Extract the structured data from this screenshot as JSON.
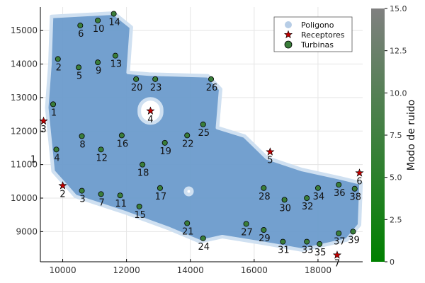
{
  "chart_data": {
    "type": "scatter",
    "xlim": [
      9300,
      19400
    ],
    "ylim": [
      8100,
      15700
    ],
    "x_ticks": [
      10000,
      12000,
      14000,
      16000,
      18000
    ],
    "y_ticks": [
      9000,
      10000,
      11000,
      12000,
      13000,
      14000,
      15000
    ],
    "grid": true,
    "legend_position": "top-right",
    "legend": [
      {
        "name": "Poligono",
        "marker": "circle",
        "color": "#b7cde6"
      },
      {
        "name": "Receptores",
        "marker": "star",
        "color": "#c00000"
      },
      {
        "name": "Turbinas",
        "marker": "circle",
        "color": "#3a7d3a"
      }
    ],
    "colorbar": {
      "label": "Modo de ruido",
      "range": [
        0,
        15
      ],
      "ticks": [
        "0",
        "2.5",
        "5.0",
        "7.5",
        "10.0",
        "12.5",
        "15.0"
      ],
      "color_low": "#008000",
      "color_high": "#808080"
    },
    "polygon_color": "#6b9bcc",
    "polygon": [
      [
        9650,
        15420
      ],
      [
        11600,
        15520
      ],
      [
        12150,
        15100
      ],
      [
        12050,
        13750
      ],
      [
        12700,
        13700
      ],
      [
        14550,
        13650
      ],
      [
        14950,
        13250
      ],
      [
        14850,
        12100
      ],
      [
        15700,
        11850
      ],
      [
        16400,
        11200
      ],
      [
        17500,
        10850
      ],
      [
        18700,
        10600
      ],
      [
        19350,
        10450
      ],
      [
        19300,
        9200
      ],
      [
        18900,
        8750
      ],
      [
        17500,
        8450
      ],
      [
        16300,
        8650
      ],
      [
        15000,
        8850
      ],
      [
        14300,
        8700
      ],
      [
        13300,
        9100
      ],
      [
        12000,
        9550
      ],
      [
        10400,
        10050
      ],
      [
        9700,
        10800
      ],
      [
        9500,
        12700
      ],
      [
        9600,
        14000
      ]
    ],
    "holes": [
      {
        "x": 12750,
        "y": 12600,
        "r": 350
      },
      {
        "x": 13950,
        "y": 10200,
        "r": 100
      }
    ],
    "receptors": [
      {
        "label": "1",
        "x": 9300,
        "y": 11400
      },
      {
        "label": "2",
        "x": 10000,
        "y": 10370
      },
      {
        "label": "3",
        "x": 9400,
        "y": 12300
      },
      {
        "label": "4",
        "x": 12750,
        "y": 12600
      },
      {
        "label": "5",
        "x": 16500,
        "y": 11380
      },
      {
        "label": "6",
        "x": 19300,
        "y": 10750
      },
      {
        "label": "7",
        "x": 18600,
        "y": 8300
      }
    ],
    "turbines": [
      {
        "label": "1",
        "x": 9700,
        "y": 12800
      },
      {
        "label": "2",
        "x": 9850,
        "y": 14150
      },
      {
        "label": "3",
        "x": 10600,
        "y": 10220
      },
      {
        "label": "4",
        "x": 9800,
        "y": 11450
      },
      {
        "label": "5",
        "x": 10500,
        "y": 13900
      },
      {
        "label": "6",
        "x": 10550,
        "y": 15150
      },
      {
        "label": "7",
        "x": 11200,
        "y": 10120
      },
      {
        "label": "8",
        "x": 10600,
        "y": 11850
      },
      {
        "label": "9",
        "x": 11100,
        "y": 14050
      },
      {
        "label": "10",
        "x": 11100,
        "y": 15300
      },
      {
        "label": "11",
        "x": 11800,
        "y": 10080
      },
      {
        "label": "12",
        "x": 11200,
        "y": 11450
      },
      {
        "label": "13",
        "x": 11650,
        "y": 14250
      },
      {
        "label": "14",
        "x": 11600,
        "y": 15500
      },
      {
        "label": "15",
        "x": 12400,
        "y": 9750
      },
      {
        "label": "16",
        "x": 11850,
        "y": 11870
      },
      {
        "label": "17",
        "x": 13050,
        "y": 10300
      },
      {
        "label": "18",
        "x": 12500,
        "y": 11000
      },
      {
        "label": "19",
        "x": 13200,
        "y": 11650
      },
      {
        "label": "20",
        "x": 12300,
        "y": 13550
      },
      {
        "label": "21",
        "x": 13900,
        "y": 9250
      },
      {
        "label": "22",
        "x": 13900,
        "y": 11870
      },
      {
        "label": "23",
        "x": 12900,
        "y": 13550
      },
      {
        "label": "24",
        "x": 14400,
        "y": 8800
      },
      {
        "label": "25",
        "x": 14400,
        "y": 12200
      },
      {
        "label": "26",
        "x": 14650,
        "y": 13550
      },
      {
        "label": "27",
        "x": 15750,
        "y": 9230
      },
      {
        "label": "28",
        "x": 16300,
        "y": 10300
      },
      {
        "label": "29",
        "x": 16300,
        "y": 9050
      },
      {
        "label": "30",
        "x": 16950,
        "y": 9950
      },
      {
        "label": "31",
        "x": 16900,
        "y": 8700
      },
      {
        "label": "32",
        "x": 17650,
        "y": 10000
      },
      {
        "label": "33",
        "x": 17650,
        "y": 8700
      },
      {
        "label": "34",
        "x": 18000,
        "y": 10300
      },
      {
        "label": "35",
        "x": 18050,
        "y": 8630
      },
      {
        "label": "36",
        "x": 18650,
        "y": 10400
      },
      {
        "label": "37",
        "x": 18650,
        "y": 8950
      },
      {
        "label": "38",
        "x": 19150,
        "y": 10280
      },
      {
        "label": "39",
        "x": 19100,
        "y": 9000
      }
    ]
  }
}
